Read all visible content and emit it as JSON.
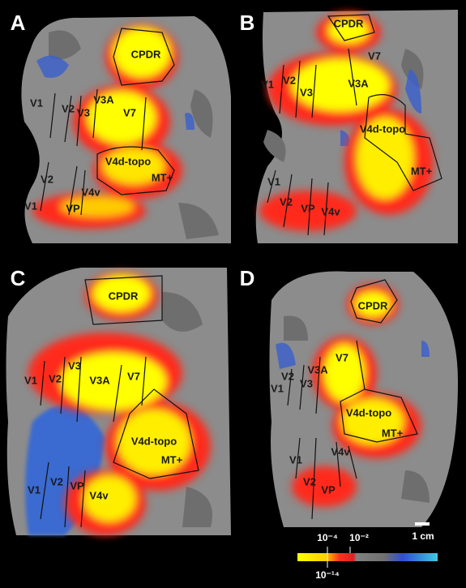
{
  "panels": [
    {
      "label": "A",
      "regions": [
        "CPDR",
        "V1",
        "V2",
        "V3",
        "V3A",
        "V7",
        "V4d-topo",
        "MT+",
        "V2",
        "V1",
        "VP",
        "V4v"
      ]
    },
    {
      "label": "B",
      "regions": [
        "CPDR",
        "V7",
        "V1",
        "V2",
        "V3",
        "V3A",
        "V4d-topo",
        "MT+",
        "V1",
        "V2",
        "VP",
        "V4v"
      ]
    },
    {
      "label": "C",
      "regions": [
        "CPDR",
        "V1",
        "V2",
        "V3",
        "V3A",
        "V7",
        "V4d-topo",
        "MT+",
        "V1",
        "V2",
        "VP",
        "V4v"
      ]
    },
    {
      "label": "D",
      "regions": [
        "CPDR",
        "V7",
        "V2",
        "V3A",
        "V1",
        "V3",
        "V4d-topo",
        "MT+",
        "V4v",
        "V1",
        "V2",
        "VP"
      ]
    }
  ],
  "scale_bar": "1 cm",
  "colorbar": {
    "top_labels": [
      "10⁻⁴",
      "10⁻²"
    ],
    "bottom_label": "10⁻¹⁴"
  }
}
